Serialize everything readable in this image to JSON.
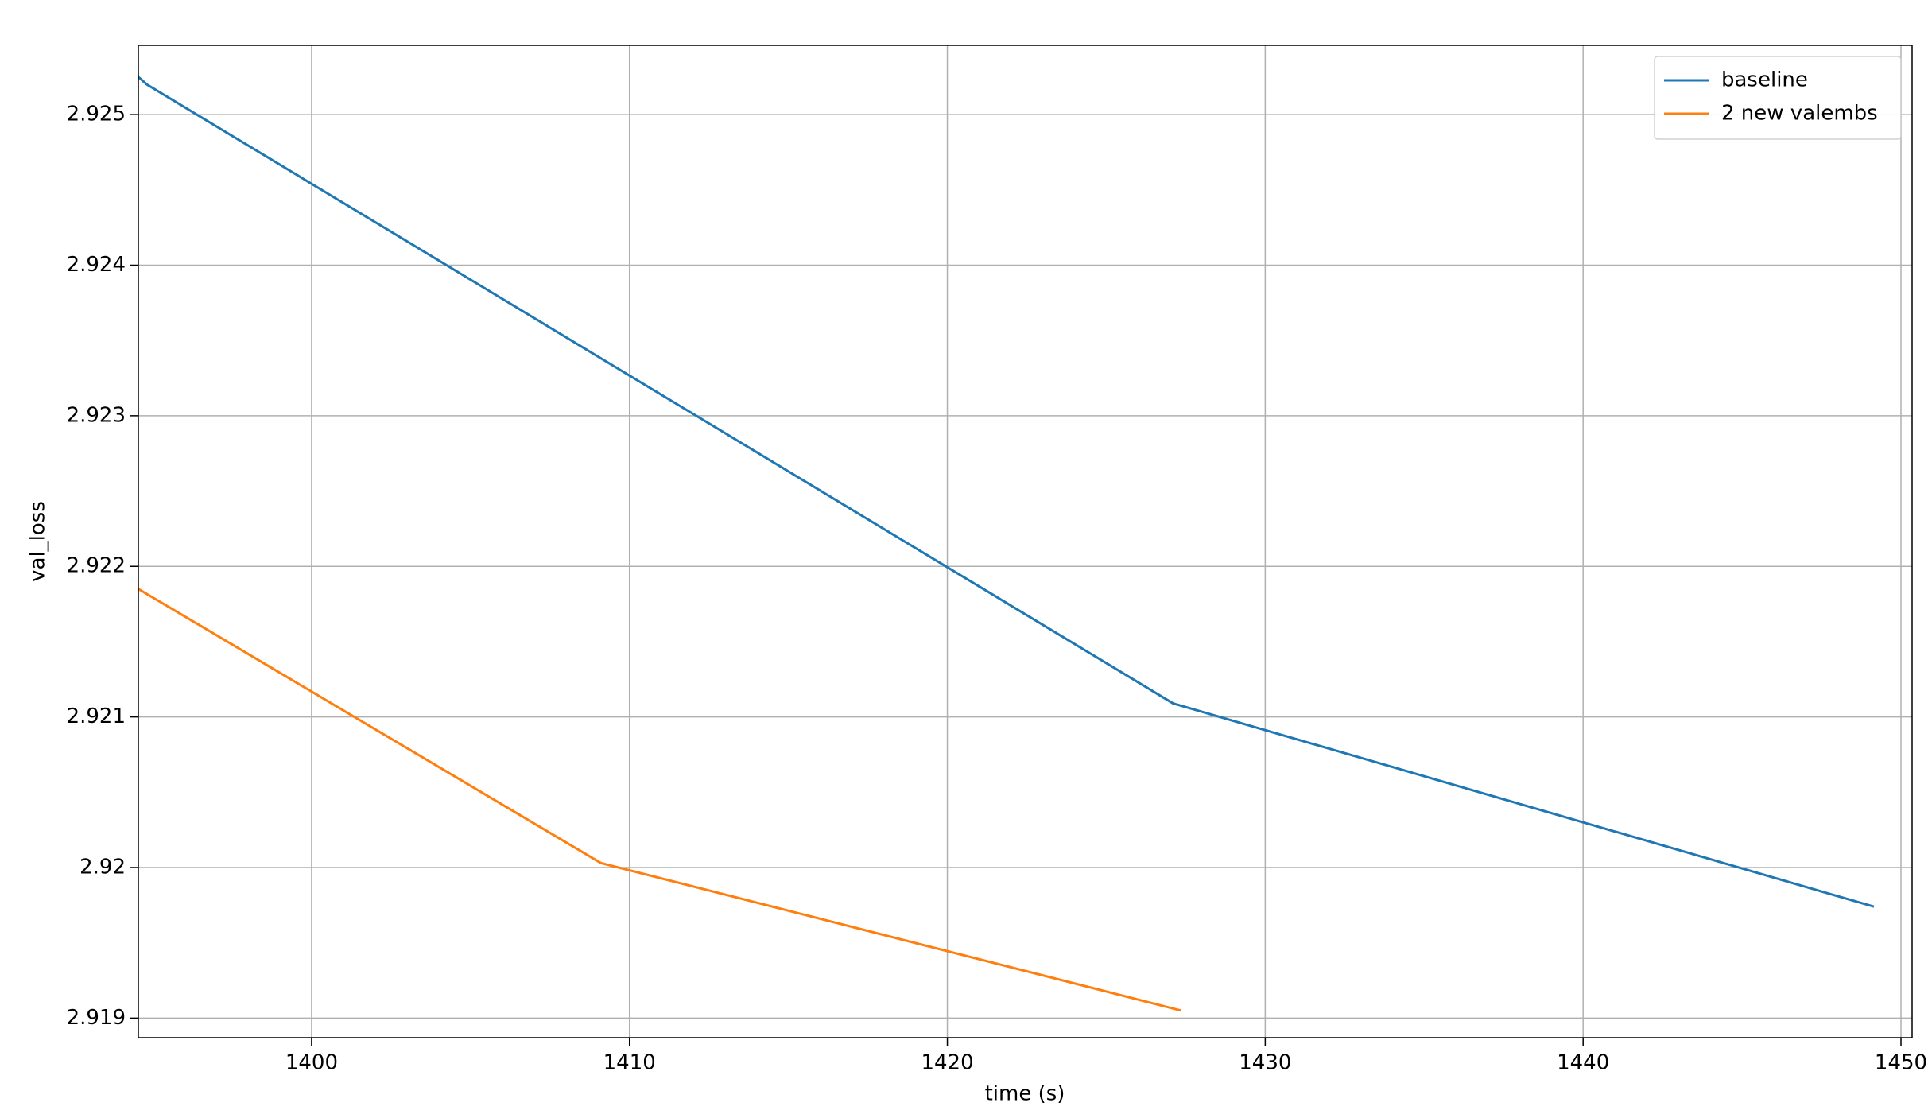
{
  "chart_data": {
    "type": "line",
    "xlabel": "time (s)",
    "ylabel": "val_loss",
    "series": [
      {
        "name": "baseline",
        "color": "#1f77b4",
        "x": [
          1394.55,
          1394.82,
          1427.1,
          1449.15
        ],
        "values": [
          2.92525,
          2.9252,
          2.92109,
          2.91974
        ]
      },
      {
        "name": "2 new valembs",
        "color": "#ff7f0e",
        "x": [
          1394.55,
          1409.1,
          1427.36
        ],
        "values": [
          2.92185,
          2.92003,
          2.91905
        ]
      }
    ],
    "xlim": [
      1394.55,
      1450.35
    ],
    "ylim": [
      2.91887,
      2.92546
    ],
    "xticks": [
      1400,
      1410,
      1420,
      1430,
      1440,
      1450
    ],
    "yticks": [
      2.919,
      2.92,
      2.921,
      2.922,
      2.923,
      2.924,
      2.925
    ],
    "grid": true,
    "legend": "upper right"
  }
}
